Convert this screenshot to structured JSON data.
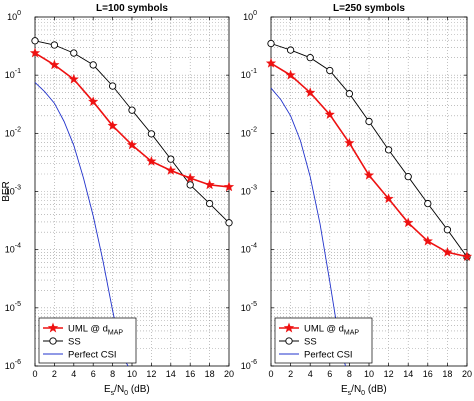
{
  "chart_data": [
    {
      "type": "line",
      "title": "L=100 symbols",
      "xlabel": "E_s/N_0 (dB)",
      "xlabel_parts": [
        "E",
        "s",
        "/N",
        "0",
        " (dB)"
      ],
      "ylabel": "BER",
      "xlim": [
        0,
        20
      ],
      "ylim": [
        1e-06,
        1
      ],
      "yscale": "log",
      "grid": true,
      "legend": "bottom-left",
      "x_ticks": [
        0,
        2,
        4,
        6,
        8,
        10,
        12,
        14,
        16,
        18,
        20
      ],
      "y_tick_labels": [
        [
          "10",
          "0"
        ],
        [
          "10",
          "-1"
        ],
        [
          "10",
          "-2"
        ],
        [
          "10",
          "-3"
        ],
        [
          "10",
          "-4"
        ],
        [
          "10",
          "-5"
        ],
        [
          "10",
          "-6"
        ]
      ],
      "series": [
        {
          "name": "UML @ d_MAP",
          "name_parts": [
            "UML @ d",
            "MAP"
          ],
          "color": "#ee1111",
          "marker": "star",
          "x": [
            0,
            2,
            4,
            6,
            8,
            10,
            12,
            14,
            16,
            18,
            20
          ],
          "y": [
            0.24,
            0.15,
            0.085,
            0.035,
            0.0135,
            0.0063,
            0.0033,
            0.0023,
            0.0017,
            0.0013,
            0.0012
          ]
        },
        {
          "name": "SS",
          "color": "#000000",
          "marker": "circle",
          "x": [
            0,
            2,
            4,
            6,
            8,
            10,
            12,
            14,
            16,
            18,
            20
          ],
          "y": [
            0.39,
            0.33,
            0.24,
            0.15,
            0.065,
            0.025,
            0.0098,
            0.0036,
            0.0013,
            0.00062,
            0.00029
          ]
        },
        {
          "name": "Perfect CSI",
          "color": "#2233cc",
          "marker": "none",
          "x": [
            0,
            1,
            2,
            3,
            4,
            5,
            6,
            7,
            8,
            9,
            9.6
          ],
          "y": [
            0.075,
            0.052,
            0.033,
            0.016,
            0.0062,
            0.0017,
            0.00038,
            6.5e-05,
            9e-06,
            1.5e-06,
            1e-06
          ]
        }
      ]
    },
    {
      "type": "line",
      "title": "L=250 symbols",
      "xlabel": "E_s/N_0 (dB)",
      "xlabel_parts": [
        "E",
        "s",
        "/N",
        "0",
        " (dB)"
      ],
      "ylabel": "",
      "xlim": [
        0,
        20
      ],
      "ylim": [
        1e-06,
        1
      ],
      "yscale": "log",
      "grid": true,
      "legend": "bottom-left",
      "x_ticks": [
        0,
        2,
        4,
        6,
        8,
        10,
        12,
        14,
        16,
        18,
        20
      ],
      "y_tick_labels": [
        [
          "10",
          "0"
        ],
        [
          "10",
          "-1"
        ],
        [
          "10",
          "-2"
        ],
        [
          "10",
          "-3"
        ],
        [
          "10",
          "-4"
        ],
        [
          "10",
          "-5"
        ],
        [
          "10",
          "-6"
        ]
      ],
      "series": [
        {
          "name": "UML @ d_MAP",
          "name_parts": [
            "UML @ d",
            "MAP"
          ],
          "color": "#ee1111",
          "marker": "star",
          "x": [
            0,
            2,
            4,
            6,
            8,
            10,
            12,
            14,
            16,
            18,
            20
          ],
          "y": [
            0.16,
            0.1,
            0.05,
            0.021,
            0.0068,
            0.0019,
            0.00075,
            0.00029,
            0.00014,
            9e-05,
            7.6e-05
          ]
        },
        {
          "name": "SS",
          "color": "#000000",
          "marker": "circle",
          "x": [
            0,
            2,
            4,
            6,
            8,
            10,
            12,
            14,
            16,
            18,
            20
          ],
          "y": [
            0.35,
            0.27,
            0.2,
            0.12,
            0.048,
            0.016,
            0.0052,
            0.0018,
            0.00062,
            0.00022,
            7.5e-05
          ]
        },
        {
          "name": "Perfect CSI",
          "color": "#2233cc",
          "marker": "none",
          "x": [
            0,
            1,
            2,
            3,
            4,
            5,
            6,
            7,
            7.6
          ],
          "y": [
            0.06,
            0.038,
            0.02,
            0.0075,
            0.0018,
            0.00028,
            2.8e-05,
            2.5e-06,
            1e-06
          ]
        }
      ]
    }
  ]
}
